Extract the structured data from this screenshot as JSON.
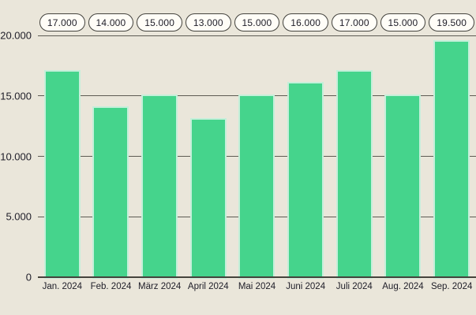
{
  "chart": {
    "background": "#eae6da",
    "bar_color": "#45d48c",
    "bar_halo_color": "#c5efda",
    "grid_color": "#5d5b53",
    "axis_line_color": "#45433c",
    "text_color": "#1e1d28",
    "badge_bg": "#fffdf7",
    "badge_border": "#44433e"
  },
  "chart_data": {
    "type": "bar",
    "title": "",
    "xlabel": "",
    "ylabel": "",
    "categories": [
      "Jan. 2024",
      "Feb. 2024",
      "März 2024",
      "April 2024",
      "Mai 2024",
      "Juni 2024",
      "Juli 2024",
      "Aug. 2024",
      "Sep. 2024"
    ],
    "values": [
      17000,
      14000,
      15000,
      13000,
      15000,
      16000,
      17000,
      15000,
      19500
    ],
    "value_labels": [
      "17.000",
      "14.000",
      "15.000",
      "13.000",
      "15.000",
      "16.000",
      "17.000",
      "15.000",
      "19.500"
    ],
    "ylim": [
      0,
      20000
    ],
    "yticks": [
      0,
      5000,
      10000,
      15000,
      20000
    ],
    "ytick_labels": [
      "0",
      "5.000",
      "10.000",
      "15.000",
      "20.000"
    ],
    "grid": true,
    "legend": false,
    "legend_position": "none",
    "number_locale": "de"
  }
}
